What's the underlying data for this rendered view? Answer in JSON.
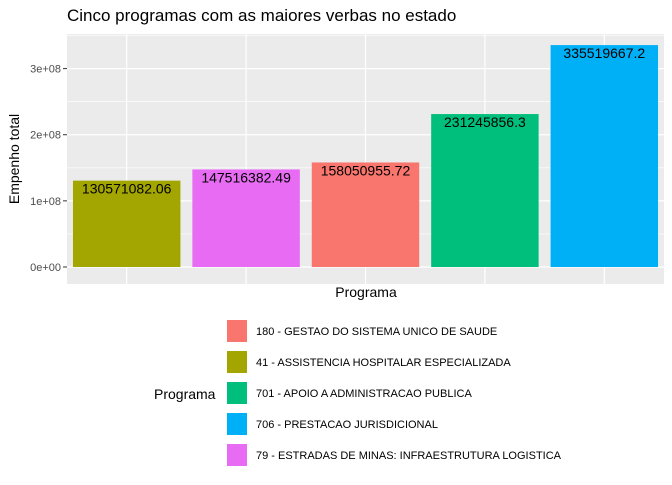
{
  "chart_data": {
    "type": "bar",
    "title": "Cinco programas com as maiores verbas no estado",
    "xlabel": "Programa",
    "ylabel": "Empenho total",
    "ylim": [
      0,
      352300000
    ],
    "yticks": [
      {
        "value": 0,
        "label": "0e+00"
      },
      {
        "value": 100000000,
        "label": "1e+08"
      },
      {
        "value": 200000000,
        "label": "2e+08"
      },
      {
        "value": 300000000,
        "label": "3e+08"
      }
    ],
    "grid": true,
    "legend_position": "bottom",
    "legend_title": "Programa",
    "bars": [
      {
        "series": "41 - ASSISTENCIA HOSPITALAR ESPECIALIZADA",
        "value": 130571082.06,
        "label": "130571082.06",
        "color": "#a3a500"
      },
      {
        "series": "79 - ESTRADAS DE MINAS: INFRAESTRUTURA LOGISTICA",
        "value": 147516382.49,
        "label": "147516382.49",
        "color": "#e76bf3"
      },
      {
        "series": "180 - GESTAO DO SISTEMA UNICO DE SAUDE",
        "value": 158050955.72,
        "label": "158050955.72",
        "color": "#f8766d"
      },
      {
        "series": "701 - APOIO A ADMINISTRACAO PUBLICA",
        "value": 231245856.3,
        "label": "231245856.3",
        "color": "#00bf7d"
      },
      {
        "series": "706 - PRESTACAO JURISDICIONAL",
        "value": 335519667.2,
        "label": "335519667.2",
        "color": "#00b0f6"
      }
    ],
    "legend": [
      {
        "label": "180 - GESTAO DO SISTEMA UNICO DE SAUDE",
        "color": "#f8766d"
      },
      {
        "label": "41 - ASSISTENCIA HOSPITALAR ESPECIALIZADA",
        "color": "#a3a500"
      },
      {
        "label": "701 - APOIO A ADMINISTRACAO PUBLICA",
        "color": "#00bf7d"
      },
      {
        "label": "706 - PRESTACAO JURISDICIONAL",
        "color": "#00b0f6"
      },
      {
        "label": "79 - ESTRADAS DE MINAS: INFRAESTRUTURA LOGISTICA",
        "color": "#e76bf3"
      }
    ]
  }
}
